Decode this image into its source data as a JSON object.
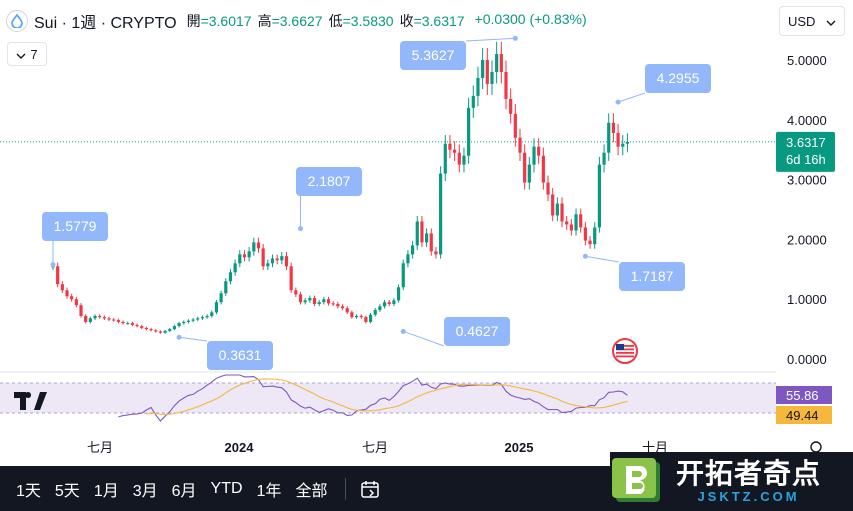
{
  "header": {
    "symbol": "Sui · 1週 · CRYPTO",
    "open_label": "開",
    "open": "=3.6017",
    "high_label": "高",
    "high": "=3.6627",
    "low_label": "低",
    "low": "=3.5830",
    "close_label": "收",
    "close": "=3.6317",
    "change": "+0.0300 (+0.83%)"
  },
  "indicator_toggle": {
    "count": "7",
    "icon": "chevron-down-icon"
  },
  "currency": {
    "label": "USD",
    "icon": "chevron-down-icon"
  },
  "price_axis": {
    "ticks": [
      "5.0000",
      "4.0000",
      "3.0000",
      "2.0000",
      "1.0000",
      "0.0000"
    ],
    "current_price": "3.6317",
    "countdown": "6d 16h"
  },
  "rsi_axis": {
    "rsi_value": "55.86",
    "ma_value": "49.44"
  },
  "time_axis": {
    "labels": [
      "七月",
      "2024",
      "七月",
      "2025",
      "十月"
    ]
  },
  "colors": {
    "up": "#089981",
    "down": "#f23645",
    "callout": "#92b7fb",
    "rsi": "#7e57c2",
    "rsi_ma": "#f5b83d",
    "rsi_band": "#ede7f6"
  },
  "chart_data": {
    "type": "candlestick",
    "ylim": [
      0,
      5.6
    ],
    "callouts": [
      {
        "label": "1.5779",
        "value": 1.5779
      },
      {
        "label": "0.3631",
        "value": 0.3631
      },
      {
        "label": "2.1807",
        "value": 2.1807
      },
      {
        "label": "0.4627",
        "value": 0.4627
      },
      {
        "label": "5.3627",
        "value": 5.3627
      },
      {
        "label": "1.7187",
        "value": 1.7187
      },
      {
        "label": "4.2955",
        "value": 4.2955
      }
    ],
    "close": [
      1.55,
      1.25,
      1.15,
      1.05,
      1.0,
      0.9,
      0.72,
      0.62,
      0.68,
      0.72,
      0.7,
      0.68,
      0.66,
      0.65,
      0.62,
      0.6,
      0.6,
      0.57,
      0.55,
      0.52,
      0.5,
      0.48,
      0.46,
      0.44,
      0.47,
      0.5,
      0.55,
      0.6,
      0.62,
      0.64,
      0.66,
      0.68,
      0.7,
      0.72,
      0.78,
      0.95,
      1.1,
      1.3,
      1.45,
      1.6,
      1.75,
      1.7,
      1.8,
      1.95,
      1.85,
      1.55,
      1.6,
      1.68,
      1.65,
      1.72,
      1.55,
      1.15,
      1.08,
      0.95,
      0.98,
      1.02,
      0.92,
      0.95,
      1.0,
      0.93,
      0.92,
      0.88,
      0.85,
      0.78,
      0.7,
      0.72,
      0.7,
      0.62,
      0.74,
      0.82,
      0.88,
      0.95,
      0.92,
      0.98,
      1.2,
      1.6,
      1.75,
      1.9,
      2.3,
      1.95,
      2.1,
      1.8,
      1.75,
      3.1,
      3.6,
      3.5,
      3.45,
      3.25,
      3.4,
      4.2,
      4.4,
      4.7,
      5.0,
      4.6,
      4.8,
      5.1,
      4.8,
      4.35,
      4.1,
      3.7,
      3.45,
      2.95,
      3.25,
      3.55,
      3.4,
      2.95,
      2.75,
      2.4,
      2.6,
      2.3,
      2.25,
      2.15,
      2.42,
      2.2,
      1.98,
      1.92,
      2.2,
      3.25,
      3.45,
      3.95,
      3.78,
      3.55,
      3.6,
      3.63
    ],
    "rsi": [
      null,
      null,
      null,
      null,
      null,
      null,
      null,
      null,
      null,
      null,
      null,
      null,
      null,
      null,
      null,
      null,
      null,
      null,
      null,
      null,
      null,
      null,
      null,
      null,
      null,
      null,
      null,
      null,
      null,
      null,
      null,
      null,
      null,
      null,
      null,
      null,
      null,
      null,
      null,
      null,
      null,
      null,
      null,
      null,
      null,
      null,
      null,
      null,
      null,
      null,
      null,
      null,
      null,
      null,
      null,
      null,
      null,
      null,
      null,
      null,
      null,
      null,
      null,
      null,
      null,
      null,
      null,
      null,
      null,
      null,
      null,
      null,
      null,
      null,
      null,
      null,
      null,
      null,
      null,
      null,
      null,
      null,
      null,
      null,
      null,
      null,
      null,
      null,
      null,
      null,
      null,
      null,
      null,
      null,
      null,
      null,
      null,
      null,
      null,
      null,
      null,
      null,
      null,
      null,
      null,
      null,
      null,
      null,
      null,
      null,
      null,
      null,
      null,
      null,
      null,
      null,
      null,
      null,
      null,
      null,
      null,
      null,
      null,
      55.86
    ],
    "rsi_ma_last": 49.44
  }
}
